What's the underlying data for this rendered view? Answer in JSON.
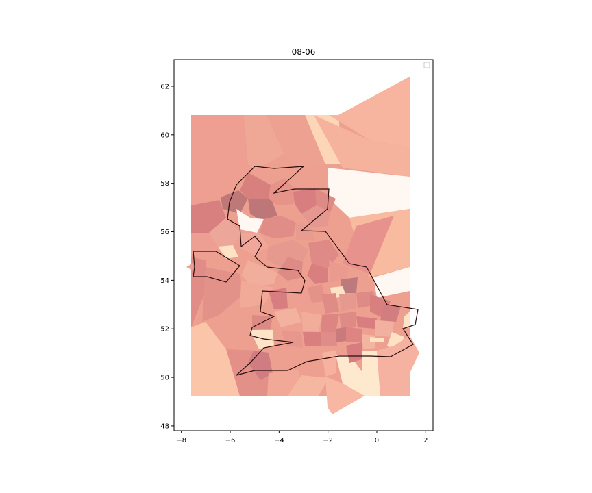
{
  "figure": {
    "title": "08-06",
    "legend_label": ""
  },
  "chart_data": {
    "type": "heatmap",
    "title": "08-06",
    "xlabel": "",
    "ylabel": "",
    "xlim": [
      -8.3,
      2.3
    ],
    "ylim": [
      47.8,
      63.1
    ],
    "x_ticks": [
      -8,
      -6,
      -4,
      -2,
      0,
      2
    ],
    "y_ticks": [
      48,
      50,
      52,
      54,
      56,
      58,
      60,
      62
    ],
    "x_tick_labels": [
      "−8",
      "−6",
      "−4",
      "−2",
      "0",
      "2"
    ],
    "y_tick_labels": [
      "48",
      "50",
      "52",
      "54",
      "56",
      "58",
      "60",
      "62"
    ],
    "grid": false,
    "legend": "top-right (empty)",
    "colormap": "light orange-red (OrRd-like)",
    "colors": {
      "low": "#fff7ef",
      "mid": "#f4a993",
      "high": "#d9787b",
      "outline": "#2b0d0d"
    }
  }
}
